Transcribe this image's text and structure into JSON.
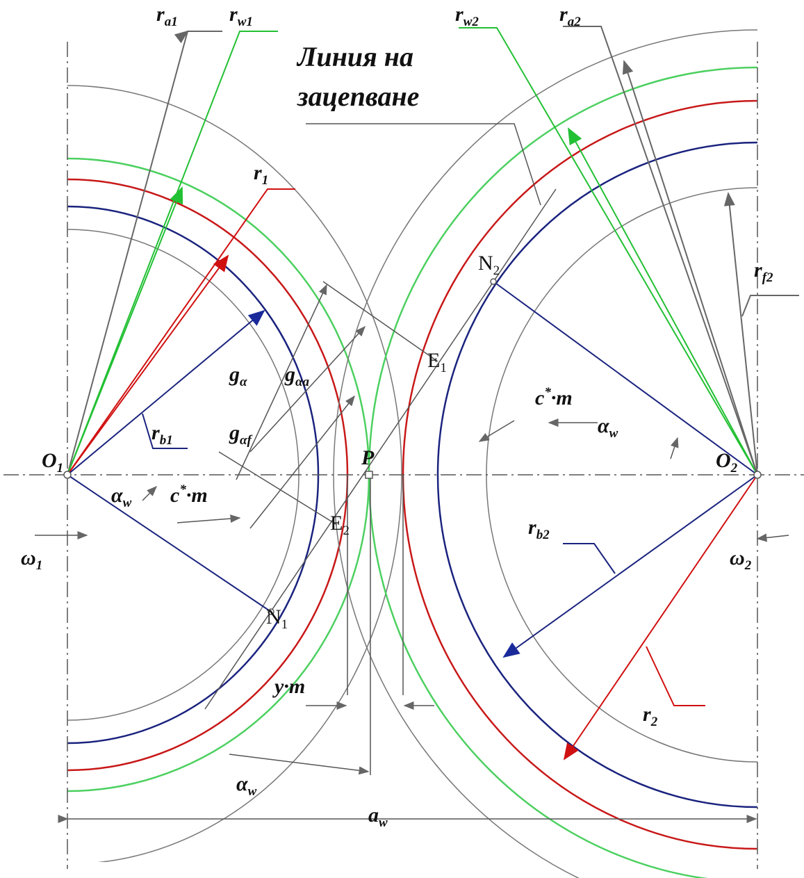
{
  "title": [
    "Линия на",
    "зацепване"
  ],
  "labels": [
    {
      "text": "r",
      "sub": "a1"
    },
    {
      "text": "r",
      "sub": "w1"
    },
    {
      "text": "r",
      "sub": "w2"
    },
    {
      "text": "r",
      "sub": "a2"
    },
    {
      "text": "r",
      "sub": "1"
    },
    {
      "text": "N",
      "sub": "2"
    },
    {
      "text": "r",
      "sub": "f2"
    },
    {
      "text": "g",
      "sub": "α"
    },
    {
      "text": "g",
      "sub": "αa"
    },
    {
      "text": "E",
      "sub": "1"
    },
    {
      "text": "c",
      "sup": "*",
      "tail": "·m"
    },
    {
      "text": "α",
      "sub": "w"
    },
    {
      "text": "r",
      "sub": "b1"
    },
    {
      "text": "g",
      "sub": "αf"
    },
    {
      "text": "O",
      "sub": "1"
    },
    {
      "text": "P"
    },
    {
      "text": "O",
      "sub": "2"
    },
    {
      "text": "α",
      "sub": "w"
    },
    {
      "text": "c",
      "sup": "*",
      "tail": "·m"
    },
    {
      "text": "E",
      "sub": "2"
    },
    {
      "text": "r",
      "sub": "b2"
    },
    {
      "text": "ω",
      "sub": "1"
    },
    {
      "text": "ω",
      "sub": "2"
    },
    {
      "text": "N",
      "sub": "1"
    },
    {
      "text": "y·m"
    },
    {
      "text": "r",
      "sub": "2"
    },
    {
      "text": "α",
      "sub": "w"
    },
    {
      "text": "a",
      "sub": "w"
    }
  ]
}
